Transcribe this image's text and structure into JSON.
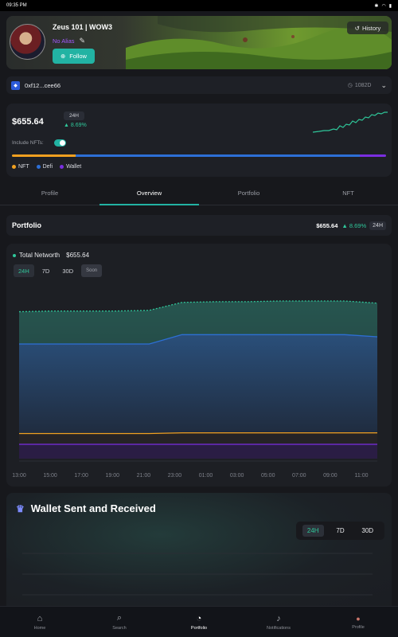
{
  "status_bar": {
    "time": "09:35 PM"
  },
  "profile": {
    "name": "Zeus 101 | WOW3",
    "alias": "No Alias",
    "follow_label": "Follow",
    "history_label": "History"
  },
  "address": {
    "short": "0xf12...cee66",
    "age": "1082D"
  },
  "summary": {
    "total_value": "$655.64",
    "period": "24H",
    "change": "▲ 8.69%",
    "include_nfts_label": "Include NFTs:",
    "include_nfts": true,
    "allocation": [
      {
        "name": "NFT",
        "color": "#f0a020",
        "share": 0.17
      },
      {
        "name": "Defi",
        "color": "#2d6fd6",
        "share": 0.76
      },
      {
        "name": "Wallet",
        "color": "#7a2ee0",
        "share": 0.07
      }
    ]
  },
  "tabs": [
    {
      "label": "Profile",
      "active": false
    },
    {
      "label": "Overview",
      "active": true
    },
    {
      "label": "Portfolio",
      "active": false
    },
    {
      "label": "NFT",
      "active": false
    }
  ],
  "portfolio": {
    "title": "Portfolio",
    "value": "$655.64",
    "change": "▲ 8.69%",
    "period": "24H"
  },
  "networth": {
    "label": "Total Networth",
    "value": "$655.64",
    "ranges": [
      "24H",
      "7D",
      "30D"
    ],
    "soon_label": "Soon"
  },
  "chart_data": {
    "type": "area",
    "title": "Total Networth",
    "categories": [
      "13:00",
      "15:00",
      "17:00",
      "19:00",
      "21:00",
      "23:00",
      "01:00",
      "03:00",
      "05:00",
      "07:00",
      "09:00",
      "11:00"
    ],
    "series": [
      {
        "name": "Wallet",
        "color": "#7a2ee0",
        "values": [
          20,
          20,
          20,
          20,
          20,
          20,
          20,
          20,
          20,
          20,
          20,
          20
        ]
      },
      {
        "name": "NFT",
        "color": "#f0a020",
        "values": [
          35,
          35,
          35,
          35,
          35,
          36,
          36,
          36,
          36,
          36,
          36,
          36
        ]
      },
      {
        "name": "Defi",
        "color": "#2d6fd6",
        "values": [
          160,
          160,
          160,
          160,
          160,
          173,
          173,
          173,
          173,
          173,
          173,
          170
        ]
      },
      {
        "name": "Total",
        "color": "#2fc79a",
        "values": [
          205,
          206,
          206,
          206,
          207,
          218,
          219,
          219,
          220,
          220,
          220,
          217
        ]
      }
    ],
    "grid": false,
    "legend": "none"
  },
  "wallet_sent": {
    "title": "Wallet Sent and Received",
    "ranges": [
      "24H",
      "7D",
      "30D"
    ]
  },
  "bottom_nav": [
    {
      "label": "Home",
      "icon": "home-icon",
      "active": false
    },
    {
      "label": "Search",
      "icon": "search-icon",
      "active": false
    },
    {
      "label": "Portfolio",
      "icon": "pie-chart-icon",
      "active": true
    },
    {
      "label": "Notifications",
      "icon": "bell-icon",
      "active": false
    },
    {
      "label": "Profile",
      "icon": "user-avatar-icon",
      "active": false
    }
  ]
}
